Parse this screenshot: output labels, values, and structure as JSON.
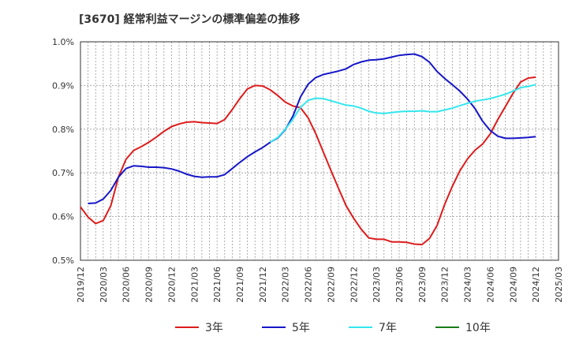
{
  "chart_data": {
    "type": "line",
    "title": "[3670]  経常利益マージンの標準偏差の推移",
    "xlabel": "",
    "ylabel": "",
    "x_range": [
      "2019-12",
      "2025-03"
    ],
    "ylim": [
      0.5,
      1.0
    ],
    "y_ticks": [
      "0.5%",
      "0.6%",
      "0.7%",
      "0.8%",
      "0.9%",
      "1.0%"
    ],
    "x_ticks": [
      "2019/12",
      "2020/03",
      "2020/06",
      "2020/09",
      "2020/12",
      "2021/03",
      "2021/06",
      "2021/09",
      "2021/12",
      "2022/03",
      "2022/06",
      "2022/09",
      "2022/12",
      "2023/03",
      "2023/06",
      "2023/09",
      "2023/12",
      "2024/03",
      "2024/06",
      "2024/09",
      "2024/12",
      "2025/03"
    ],
    "grid": true,
    "legend_position": "bottom",
    "colors": {
      "3年": "#dd1c1c",
      "5年": "#1616c8",
      "7年": "#33e6ee",
      "10年": "#1a7a1a"
    },
    "series": [
      {
        "name": "3年",
        "x": [
          "2019-12",
          "2020-01",
          "2020-02",
          "2020-03",
          "2020-04",
          "2020-05",
          "2020-06",
          "2020-07",
          "2020-08",
          "2020-09",
          "2020-10",
          "2020-11",
          "2020-12",
          "2021-01",
          "2021-02",
          "2021-03",
          "2021-04",
          "2021-05",
          "2021-06",
          "2021-07",
          "2021-08",
          "2021-09",
          "2021-10",
          "2021-11",
          "2021-12",
          "2022-01",
          "2022-02",
          "2022-03",
          "2022-04",
          "2022-05",
          "2022-06",
          "2022-07",
          "2022-08",
          "2022-09",
          "2022-10",
          "2022-11",
          "2022-12",
          "2023-01",
          "2023-02",
          "2023-03",
          "2023-04",
          "2023-05",
          "2023-06",
          "2023-07",
          "2023-08",
          "2023-09",
          "2023-10",
          "2023-11",
          "2023-12",
          "2024-01",
          "2024-02",
          "2024-03",
          "2024-04",
          "2024-05",
          "2024-06",
          "2024-07",
          "2024-08",
          "2024-09",
          "2024-10",
          "2024-11",
          "2024-12"
        ],
        "y": [
          0.622,
          0.599,
          0.584,
          0.591,
          0.625,
          0.69,
          0.731,
          0.751,
          0.76,
          0.77,
          0.782,
          0.795,
          0.806,
          0.812,
          0.816,
          0.817,
          0.815,
          0.814,
          0.813,
          0.822,
          0.845,
          0.87,
          0.892,
          0.9,
          0.899,
          0.89,
          0.877,
          0.862,
          0.853,
          0.849,
          0.826,
          0.79,
          0.748,
          0.706,
          0.665,
          0.625,
          0.596,
          0.571,
          0.551,
          0.548,
          0.548,
          0.542,
          0.542,
          0.541,
          0.537,
          0.536,
          0.55,
          0.58,
          0.628,
          0.669,
          0.705,
          0.732,
          0.752,
          0.766,
          0.789,
          0.822,
          0.852,
          0.882,
          0.908,
          0.917,
          0.919
        ]
      },
      {
        "name": "5年",
        "x": [
          "2020-01",
          "2020-02",
          "2020-03",
          "2020-04",
          "2020-05",
          "2020-06",
          "2020-07",
          "2020-08",
          "2020-09",
          "2020-10",
          "2020-11",
          "2020-12",
          "2021-01",
          "2021-02",
          "2021-03",
          "2021-04",
          "2021-05",
          "2021-06",
          "2021-07",
          "2021-08",
          "2021-09",
          "2021-10",
          "2021-11",
          "2021-12",
          "2022-01",
          "2022-02",
          "2022-03",
          "2022-04",
          "2022-05",
          "2022-06",
          "2022-07",
          "2022-08",
          "2022-09",
          "2022-10",
          "2022-11",
          "2022-12",
          "2023-01",
          "2023-02",
          "2023-03",
          "2023-04",
          "2023-05",
          "2023-06",
          "2023-07",
          "2023-08",
          "2023-09",
          "2023-10",
          "2023-11",
          "2023-12",
          "2024-01",
          "2024-02",
          "2024-03",
          "2024-04",
          "2024-05",
          "2024-06",
          "2024-07",
          "2024-08",
          "2024-09",
          "2024-10",
          "2024-11",
          "2024-12"
        ],
        "y": [
          0.63,
          0.631,
          0.64,
          0.66,
          0.69,
          0.71,
          0.716,
          0.715,
          0.713,
          0.713,
          0.712,
          0.709,
          0.704,
          0.697,
          0.692,
          0.69,
          0.691,
          0.691,
          0.696,
          0.71,
          0.724,
          0.737,
          0.748,
          0.758,
          0.77,
          0.78,
          0.799,
          0.83,
          0.874,
          0.903,
          0.918,
          0.925,
          0.929,
          0.933,
          0.938,
          0.948,
          0.954,
          0.958,
          0.959,
          0.961,
          0.965,
          0.969,
          0.971,
          0.972,
          0.966,
          0.953,
          0.932,
          0.916,
          0.902,
          0.887,
          0.869,
          0.847,
          0.818,
          0.797,
          0.784,
          0.779,
          0.779,
          0.78,
          0.781,
          0.783
        ]
      },
      {
        "name": "7年",
        "x": [
          "2022-01",
          "2022-02",
          "2022-03",
          "2022-04",
          "2022-05",
          "2022-06",
          "2022-07",
          "2022-08",
          "2022-09",
          "2022-10",
          "2022-11",
          "2022-12",
          "2023-01",
          "2023-02",
          "2023-03",
          "2023-04",
          "2023-05",
          "2023-06",
          "2023-07",
          "2023-08",
          "2023-09",
          "2023-10",
          "2023-11",
          "2023-12",
          "2024-01",
          "2024-02",
          "2024-03",
          "2024-04",
          "2024-05",
          "2024-06",
          "2024-07",
          "2024-08",
          "2024-09",
          "2024-10",
          "2024-11",
          "2024-12"
        ],
        "y": [
          0.77,
          0.781,
          0.8,
          0.823,
          0.85,
          0.866,
          0.871,
          0.87,
          0.865,
          0.86,
          0.855,
          0.853,
          0.848,
          0.841,
          0.837,
          0.836,
          0.838,
          0.84,
          0.841,
          0.841,
          0.842,
          0.84,
          0.84,
          0.844,
          0.848,
          0.854,
          0.859,
          0.864,
          0.867,
          0.87,
          0.875,
          0.88,
          0.887,
          0.895,
          0.898,
          0.902
        ]
      },
      {
        "name": "10年",
        "x": [],
        "y": []
      }
    ]
  }
}
